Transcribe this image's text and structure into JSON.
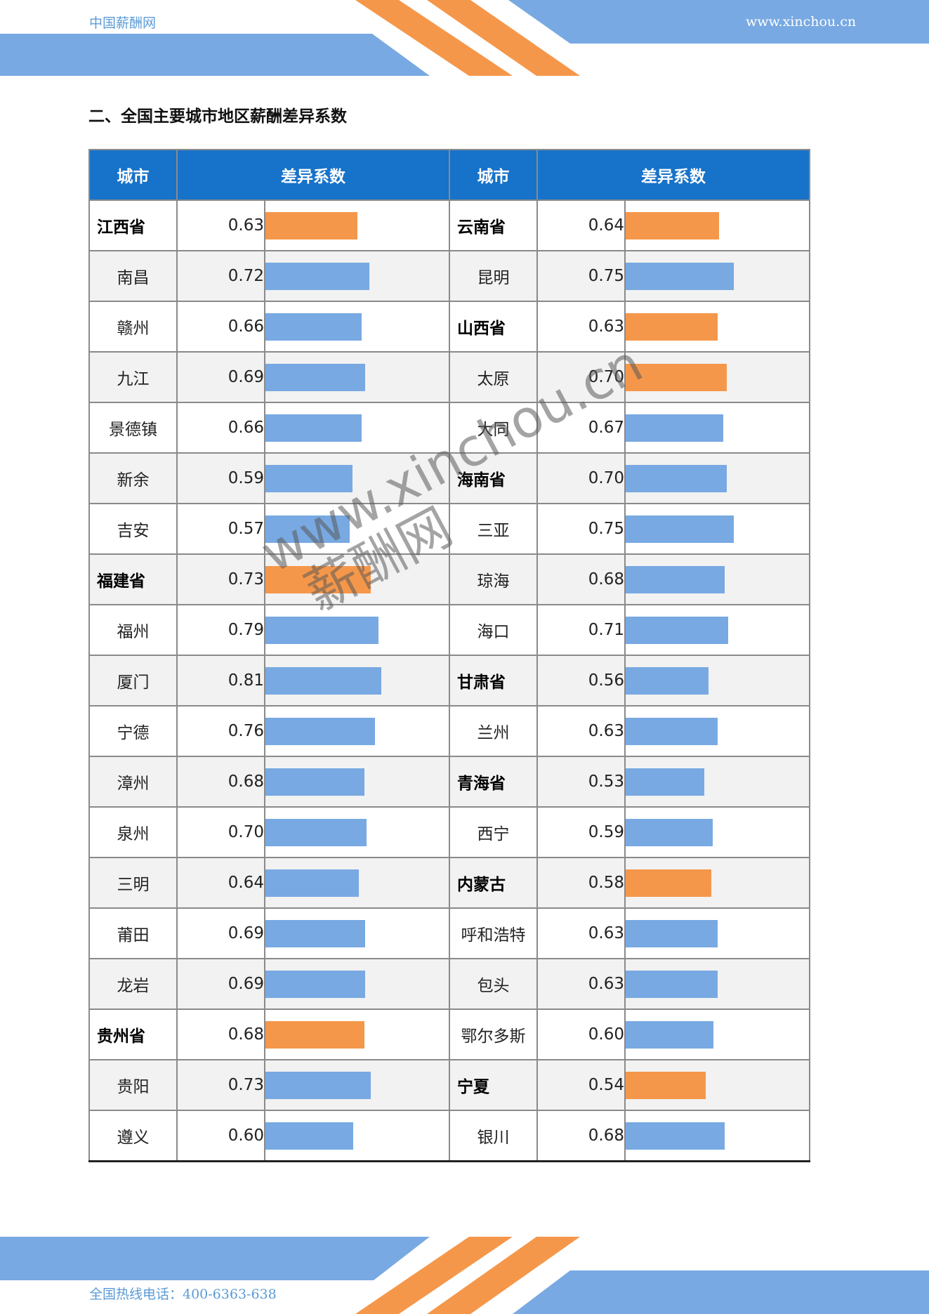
{
  "header": {
    "brand": "中国薪酬网",
    "site": "www.xinchou.cn"
  },
  "section_title": "二、全国主要城市地区薪酬差异系数",
  "table": {
    "col_city": "城市",
    "col_coef": "差异系数",
    "colors": {
      "province_bar": "#f5974a",
      "city_bar": "#78a9e2",
      "header_bg": "#1772c9"
    },
    "rows": [
      {
        "left": {
          "name": "江西省",
          "value": "0.63",
          "province": true
        },
        "right": {
          "name": "云南省",
          "value": "0.64",
          "province": true
        }
      },
      {
        "left": {
          "name": "南昌",
          "value": "0.72",
          "province": false
        },
        "right": {
          "name": "昆明",
          "value": "0.75",
          "province": false
        }
      },
      {
        "left": {
          "name": "赣州",
          "value": "0.66",
          "province": false
        },
        "right": {
          "name": "山西省",
          "value": "0.63",
          "province": true
        }
      },
      {
        "left": {
          "name": "九江",
          "value": "0.69",
          "province": false
        },
        "right": {
          "name": "太原",
          "value": "0.70",
          "province": false,
          "highlight": true
        }
      },
      {
        "left": {
          "name": "景德镇",
          "value": "0.66",
          "province": false
        },
        "right": {
          "name": "大同",
          "value": "0.67",
          "province": false
        }
      },
      {
        "left": {
          "name": "新余",
          "value": "0.59",
          "province": false
        },
        "right": {
          "name": "海南省",
          "value": "0.70",
          "province": true,
          "highlight": false
        }
      },
      {
        "left": {
          "name": "吉安",
          "value": "0.57",
          "province": false
        },
        "right": {
          "name": "三亚",
          "value": "0.75",
          "province": false
        }
      },
      {
        "left": {
          "name": "福建省",
          "value": "0.73",
          "province": true
        },
        "right": {
          "name": "琼海",
          "value": "0.68",
          "province": false
        }
      },
      {
        "left": {
          "name": "福州",
          "value": "0.79",
          "province": false
        },
        "right": {
          "name": "海口",
          "value": "0.71",
          "province": false
        }
      },
      {
        "left": {
          "name": "厦门",
          "value": "0.81",
          "province": false
        },
        "right": {
          "name": "甘肃省",
          "value": "0.56",
          "province": true,
          "highlight": false
        }
      },
      {
        "left": {
          "name": "宁德",
          "value": "0.76",
          "province": false
        },
        "right": {
          "name": "兰州",
          "value": "0.63",
          "province": false
        }
      },
      {
        "left": {
          "name": "漳州",
          "value": "0.68",
          "province": false
        },
        "right": {
          "name": "青海省",
          "value": "0.53",
          "province": true,
          "highlight": false
        }
      },
      {
        "left": {
          "name": "泉州",
          "value": "0.70",
          "province": false
        },
        "right": {
          "name": "西宁",
          "value": "0.59",
          "province": false
        }
      },
      {
        "left": {
          "name": "三明",
          "value": "0.64",
          "province": false
        },
        "right": {
          "name": "内蒙古",
          "value": "0.58",
          "province": true
        }
      },
      {
        "left": {
          "name": "莆田",
          "value": "0.69",
          "province": false
        },
        "right": {
          "name": "呼和浩特",
          "value": "0.63",
          "province": false
        }
      },
      {
        "left": {
          "name": "龙岩",
          "value": "0.69",
          "province": false
        },
        "right": {
          "name": "包头",
          "value": "0.63",
          "province": false
        }
      },
      {
        "left": {
          "name": "贵州省",
          "value": "0.68",
          "province": true
        },
        "right": {
          "name": "鄂尔多斯",
          "value": "0.60",
          "province": false
        }
      },
      {
        "left": {
          "name": "贵阳",
          "value": "0.73",
          "province": false
        },
        "right": {
          "name": "宁夏",
          "value": "0.54",
          "province": true
        }
      },
      {
        "left": {
          "name": "遵义",
          "value": "0.60",
          "province": false
        },
        "right": {
          "name": "银川",
          "value": "0.68",
          "province": false
        }
      }
    ]
  },
  "watermark": {
    "line1": "www.xinchou.cn",
    "line2": "薪酬网"
  },
  "footer": {
    "hotline": "全国热线电话：400-6363-638"
  }
}
